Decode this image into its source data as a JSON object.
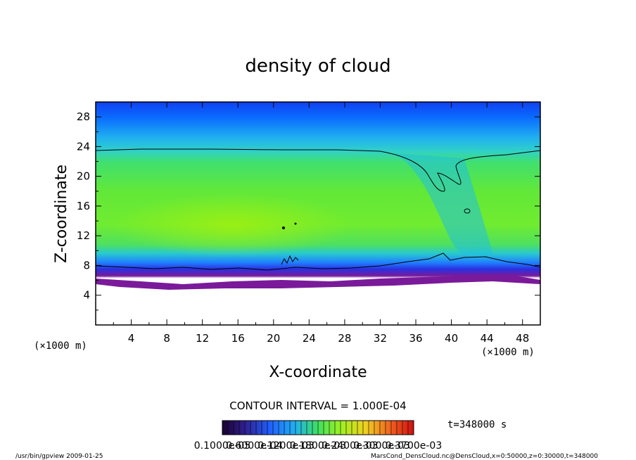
{
  "chart_data": {
    "type": "heatmap",
    "title": "density of cloud",
    "xlabel": "X-coordinate",
    "ylabel": "Z-coordinate",
    "x_unit": "(×1000 m)",
    "y_unit": "(×1000 m)",
    "xlim": [
      0,
      50
    ],
    "ylim": [
      0,
      30
    ],
    "x_ticks": [
      4,
      8,
      12,
      16,
      20,
      24,
      28,
      32,
      36,
      40,
      44,
      48
    ],
    "y_ticks": [
      4,
      8,
      12,
      16,
      20,
      24,
      28
    ],
    "contour_interval": "CONTOUR INTERVAL = 1.000E-04",
    "time_label": "t=348000 s",
    "colorbar_labels": [
      "0.1000e-05",
      "0.6000e-04",
      "0.1200e-03",
      "0.1800e-03",
      "0.2400e-03",
      "0.3000e-03",
      "0.3700e-03"
    ],
    "footer_left": "/usr/bin/gpview  2009-01-25",
    "footer_right": "MarsCond_DensCloud.nc@DensCloud,x=0:50000,z=0:30000,t=348000",
    "colors": {
      "top": "#0a40ff",
      "upper": "#20b8f0",
      "mid": "#56e048",
      "core": "#90f020",
      "base": "#7a1a9a",
      "base_blue": "#2040ff"
    }
  }
}
